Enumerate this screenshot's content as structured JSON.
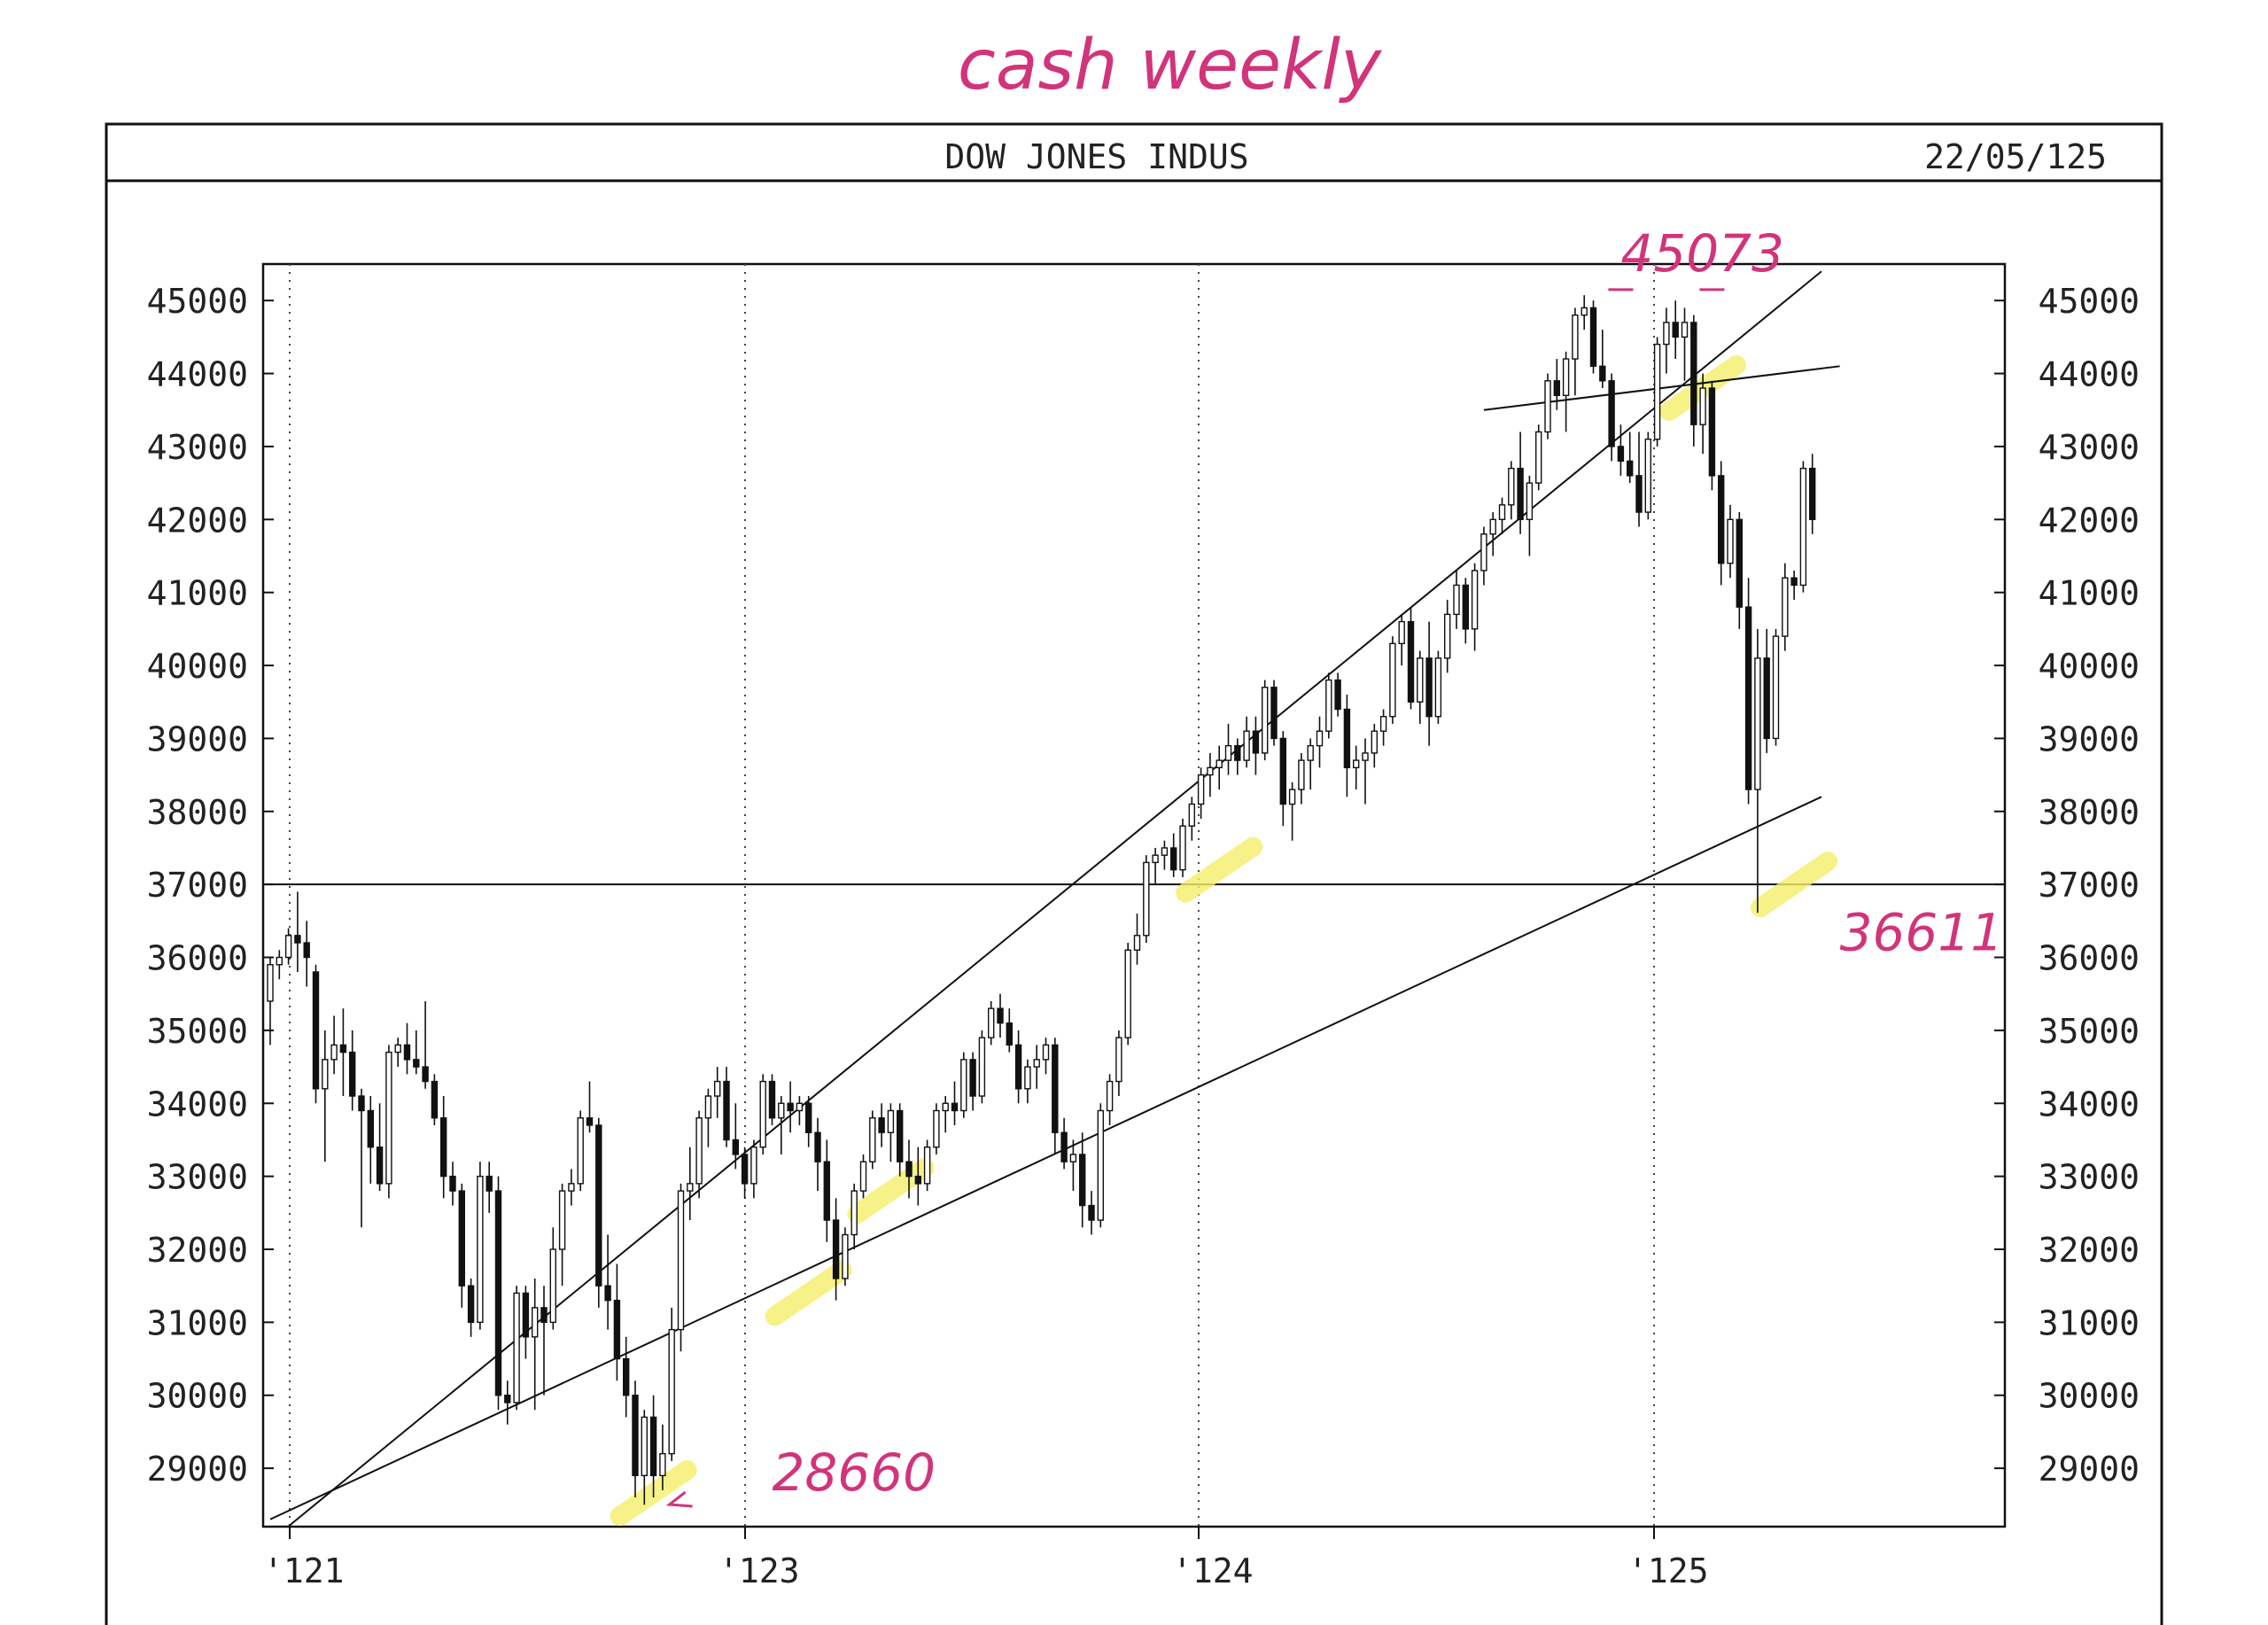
{
  "chart_data": {
    "type": "candlestick",
    "title": "DOW JONES INDUS",
    "date_label": "22/05/125",
    "ylim": [
      28200,
      45500
    ],
    "y_ticks": [
      29000,
      30000,
      31000,
      32000,
      33000,
      34000,
      35000,
      36000,
      37000,
      38000,
      39000,
      40000,
      41000,
      42000,
      43000,
      44000,
      45000
    ],
    "y_tick_labels": [
      "29000",
      "30000",
      "31000",
      "32000",
      "33000",
      "34000",
      "35000",
      "36000",
      "37000",
      "38000",
      "39000",
      "40000",
      "41000",
      "42000",
      "43000",
      "44000",
      "45000"
    ],
    "x_tick_labels": [
      "'121",
      "'123",
      "'124",
      "'125"
    ],
    "grid": "dotted vertical at year marks",
    "horizontal_line": 37000,
    "candles": [
      [
        35400,
        36000,
        34800,
        35900
      ],
      [
        35900,
        36100,
        35700,
        36000
      ],
      [
        36000,
        36400,
        35900,
        36300
      ],
      [
        36300,
        36900,
        35800,
        36200
      ],
      [
        36200,
        36500,
        35600,
        36000
      ],
      [
        35800,
        35900,
        34000,
        34200
      ],
      [
        34200,
        35000,
        33200,
        34600
      ],
      [
        34600,
        35200,
        34400,
        34800
      ],
      [
        34800,
        35300,
        34100,
        34700
      ],
      [
        34700,
        35000,
        33900,
        34100
      ],
      [
        34100,
        34200,
        32300,
        33900
      ],
      [
        33900,
        34100,
        32900,
        33400
      ],
      [
        33400,
        34000,
        32800,
        32900
      ],
      [
        32900,
        34800,
        32700,
        34700
      ],
      [
        34700,
        34900,
        34500,
        34800
      ],
      [
        34800,
        35100,
        34400,
        34600
      ],
      [
        34600,
        35000,
        34400,
        34500
      ],
      [
        34500,
        35400,
        34200,
        34300
      ],
      [
        34300,
        34400,
        33700,
        33800
      ],
      [
        33800,
        34100,
        32700,
        33000
      ],
      [
        33000,
        33200,
        32600,
        32800
      ],
      [
        32800,
        32900,
        31200,
        31500
      ],
      [
        31500,
        31600,
        30800,
        31000
      ],
      [
        31000,
        33200,
        30900,
        33000
      ],
      [
        33000,
        33200,
        32500,
        32800
      ],
      [
        32800,
        33000,
        29800,
        30000
      ],
      [
        30000,
        30200,
        29600,
        29900
      ],
      [
        29900,
        31500,
        29800,
        31400
      ],
      [
        31400,
        31500,
        30500,
        30800
      ],
      [
        30800,
        31600,
        29800,
        31200
      ],
      [
        31200,
        31500,
        30000,
        31000
      ],
      [
        31000,
        32300,
        30900,
        32000
      ],
      [
        32000,
        32900,
        31500,
        32800
      ],
      [
        32800,
        33100,
        32600,
        32900
      ],
      [
        32900,
        33900,
        32800,
        33800
      ],
      [
        33800,
        34300,
        33600,
        33700
      ],
      [
        33700,
        33800,
        31200,
        31500
      ],
      [
        31500,
        32200,
        30900,
        31300
      ],
      [
        31300,
        31800,
        30200,
        30500
      ],
      [
        30500,
        30800,
        29700,
        30000
      ],
      [
        30000,
        30200,
        28600,
        28900
      ],
      [
        28900,
        29800,
        28500,
        29700
      ],
      [
        29700,
        30000,
        28600,
        28900
      ],
      [
        28900,
        29600,
        28700,
        29200
      ],
      [
        29200,
        31200,
        29100,
        30900
      ],
      [
        30900,
        32900,
        30600,
        32800
      ],
      [
        32800,
        33400,
        32400,
        32900
      ],
      [
        32900,
        33900,
        32700,
        33800
      ],
      [
        33800,
        34200,
        33400,
        34100
      ],
      [
        34100,
        34500,
        33800,
        34300
      ],
      [
        34300,
        34500,
        33400,
        33500
      ],
      [
        33500,
        34000,
        33100,
        33300
      ],
      [
        33300,
        33400,
        32700,
        32900
      ],
      [
        32900,
        33500,
        32700,
        33400
      ],
      [
        33400,
        34400,
        33300,
        34300
      ],
      [
        34300,
        34400,
        33700,
        33800
      ],
      [
        33800,
        34100,
        33300,
        34000
      ],
      [
        34000,
        34300,
        33600,
        33900
      ],
      [
        33900,
        34100,
        33700,
        34000
      ],
      [
        34000,
        34100,
        33400,
        33600
      ],
      [
        33600,
        33800,
        32800,
        33200
      ],
      [
        33200,
        33500,
        32100,
        32400
      ],
      [
        32400,
        32700,
        31300,
        31600
      ],
      [
        31600,
        32300,
        31500,
        32200
      ],
      [
        32200,
        32900,
        32000,
        32800
      ],
      [
        32800,
        33300,
        32700,
        33200
      ],
      [
        33200,
        33900,
        33100,
        33800
      ],
      [
        33800,
        34000,
        33400,
        33600
      ],
      [
        33600,
        34000,
        33200,
        33900
      ],
      [
        33900,
        34000,
        33000,
        33200
      ],
      [
        33200,
        33500,
        32700,
        33000
      ],
      [
        33000,
        33400,
        32600,
        32900
      ],
      [
        32900,
        33500,
        32800,
        33400
      ],
      [
        33400,
        34000,
        33300,
        33900
      ],
      [
        33900,
        34100,
        33600,
        34000
      ],
      [
        34000,
        34300,
        33700,
        33900
      ],
      [
        33900,
        34700,
        33800,
        34600
      ],
      [
        34600,
        34700,
        33900,
        34100
      ],
      [
        34100,
        35000,
        34000,
        34900
      ],
      [
        34900,
        35400,
        34800,
        35300
      ],
      [
        35300,
        35500,
        34900,
        35100
      ],
      [
        35100,
        35300,
        34700,
        34800
      ],
      [
        34800,
        35000,
        34000,
        34200
      ],
      [
        34200,
        34600,
        34000,
        34500
      ],
      [
        34500,
        34800,
        34200,
        34600
      ],
      [
        34600,
        34900,
        34400,
        34800
      ],
      [
        34800,
        34900,
        33300,
        33600
      ],
      [
        33600,
        33800,
        33100,
        33200
      ],
      [
        33200,
        33500,
        32800,
        33300
      ],
      [
        33300,
        33600,
        32300,
        32600
      ],
      [
        32600,
        32800,
        32200,
        32400
      ],
      [
        32400,
        34000,
        32300,
        33900
      ],
      [
        33900,
        34400,
        33700,
        34300
      ],
      [
        34300,
        35000,
        34100,
        34900
      ],
      [
        34900,
        36200,
        34800,
        36100
      ],
      [
        36100,
        36600,
        35900,
        36300
      ],
      [
        36300,
        37400,
        36200,
        37300
      ],
      [
        37300,
        37500,
        37000,
        37400
      ],
      [
        37400,
        37600,
        37200,
        37500
      ],
      [
        37500,
        37700,
        37100,
        37200
      ],
      [
        37200,
        37900,
        37100,
        37800
      ],
      [
        37800,
        38200,
        37600,
        38100
      ],
      [
        38100,
        38600,
        37900,
        38500
      ],
      [
        38500,
        38800,
        38200,
        38600
      ],
      [
        38600,
        38900,
        38300,
        38700
      ],
      [
        38700,
        39200,
        38500,
        38900
      ],
      [
        38900,
        39000,
        38500,
        38700
      ],
      [
        38700,
        39300,
        38600,
        39100
      ],
      [
        39100,
        39300,
        38500,
        38800
      ],
      [
        38800,
        39800,
        38700,
        39700
      ],
      [
        39700,
        39800,
        38900,
        39000
      ],
      [
        39000,
        39100,
        37800,
        38100
      ],
      [
        38100,
        38400,
        37600,
        38300
      ],
      [
        38300,
        38800,
        38100,
        38700
      ],
      [
        38700,
        39000,
        38300,
        38900
      ],
      [
        38900,
        39300,
        38600,
        39100
      ],
      [
        39100,
        39900,
        39000,
        39800
      ],
      [
        39800,
        39900,
        39300,
        39400
      ],
      [
        39400,
        39600,
        38200,
        38600
      ],
      [
        38600,
        38900,
        38300,
        38700
      ],
      [
        38700,
        39000,
        38100,
        38800
      ],
      [
        38800,
        39200,
        38600,
        39100
      ],
      [
        39100,
        39400,
        38900,
        39300
      ],
      [
        39300,
        40400,
        39200,
        40300
      ],
      [
        40300,
        40700,
        40000,
        40600
      ],
      [
        40600,
        40800,
        39400,
        39500
      ],
      [
        39500,
        40200,
        39200,
        40100
      ],
      [
        40100,
        40600,
        38900,
        39300
      ],
      [
        39300,
        40200,
        39200,
        40100
      ],
      [
        40100,
        40900,
        39900,
        40700
      ],
      [
        40700,
        41300,
        40500,
        41100
      ],
      [
        41100,
        41200,
        40300,
        40500
      ],
      [
        40500,
        41400,
        40200,
        41300
      ],
      [
        41300,
        41900,
        41100,
        41800
      ],
      [
        41800,
        42100,
        41500,
        42000
      ],
      [
        42000,
        42300,
        41800,
        42200
      ],
      [
        42200,
        42800,
        42000,
        42700
      ],
      [
        42700,
        43200,
        41800,
        42000
      ],
      [
        42000,
        42600,
        41500,
        42500
      ],
      [
        42500,
        43300,
        42400,
        43200
      ],
      [
        43200,
        44000,
        43100,
        43900
      ],
      [
        43900,
        44200,
        43500,
        43700
      ],
      [
        43700,
        44300,
        43200,
        44200
      ],
      [
        44200,
        44900,
        43700,
        44800
      ],
      [
        44800,
        45073,
        44600,
        44900
      ],
      [
        44900,
        45000,
        44000,
        44100
      ],
      [
        44100,
        44600,
        43800,
        43900
      ],
      [
        43900,
        44000,
        42800,
        43000
      ],
      [
        43000,
        43300,
        42600,
        42800
      ],
      [
        42800,
        43200,
        42500,
        42600
      ],
      [
        42600,
        43200,
        41900,
        42100
      ],
      [
        42100,
        43200,
        42000,
        43100
      ],
      [
        43100,
        44500,
        43000,
        44400
      ],
      [
        44400,
        44900,
        44000,
        44700
      ],
      [
        44700,
        45000,
        44200,
        44500
      ],
      [
        44500,
        44900,
        43900,
        44700
      ],
      [
        44700,
        44800,
        43000,
        43300
      ],
      [
        43300,
        44000,
        42900,
        43800
      ],
      [
        43800,
        43900,
        42400,
        42600
      ],
      [
        42600,
        42800,
        41100,
        41400
      ],
      [
        41400,
        42200,
        41200,
        42000
      ],
      [
        42000,
        42100,
        40500,
        40800
      ],
      [
        40800,
        41200,
        38100,
        38300
      ],
      [
        38300,
        40500,
        36611,
        40100
      ],
      [
        40100,
        40500,
        38800,
        39000
      ],
      [
        39000,
        40500,
        38900,
        40400
      ],
      [
        40400,
        41400,
        40200,
        41200
      ],
      [
        41200,
        41300,
        40900,
        41100
      ],
      [
        41100,
        42800,
        41000,
        42700
      ],
      [
        42700,
        42900,
        41800,
        42000
      ]
    ],
    "trendlines": [
      {
        "from": [
          0,
          28000
        ],
        "to": [
          170,
          45400
        ]
      },
      {
        "from": [
          0,
          28300
        ],
        "to": [
          170,
          38200
        ]
      },
      {
        "from": [
          133,
          43500
        ],
        "to": [
          172,
          44100
        ]
      }
    ],
    "annotations": [
      {
        "text": "cash weekly",
        "kind": "handwritten"
      },
      {
        "text": "45073",
        "kind": "handwritten",
        "x": 148,
        "y": 45400
      },
      {
        "text": "28660",
        "kind": "handwritten",
        "x": 55,
        "y": 28700
      },
      {
        "text": "36611",
        "kind": "handwritten",
        "x": 172,
        "y": 36100
      }
    ],
    "highlights": [
      {
        "x": 42,
        "y": 28660
      },
      {
        "x": 59,
        "y": 31400
      },
      {
        "x": 68,
        "y": 32800
      },
      {
        "x": 104,
        "y": 37200
      },
      {
        "x": 157,
        "y": 43800
      },
      {
        "x": 167,
        "y": 37000
      }
    ]
  },
  "colors": {
    "ink": "#111111",
    "handwriting": "#d1347a",
    "highlight": "#f5ef6a"
  }
}
